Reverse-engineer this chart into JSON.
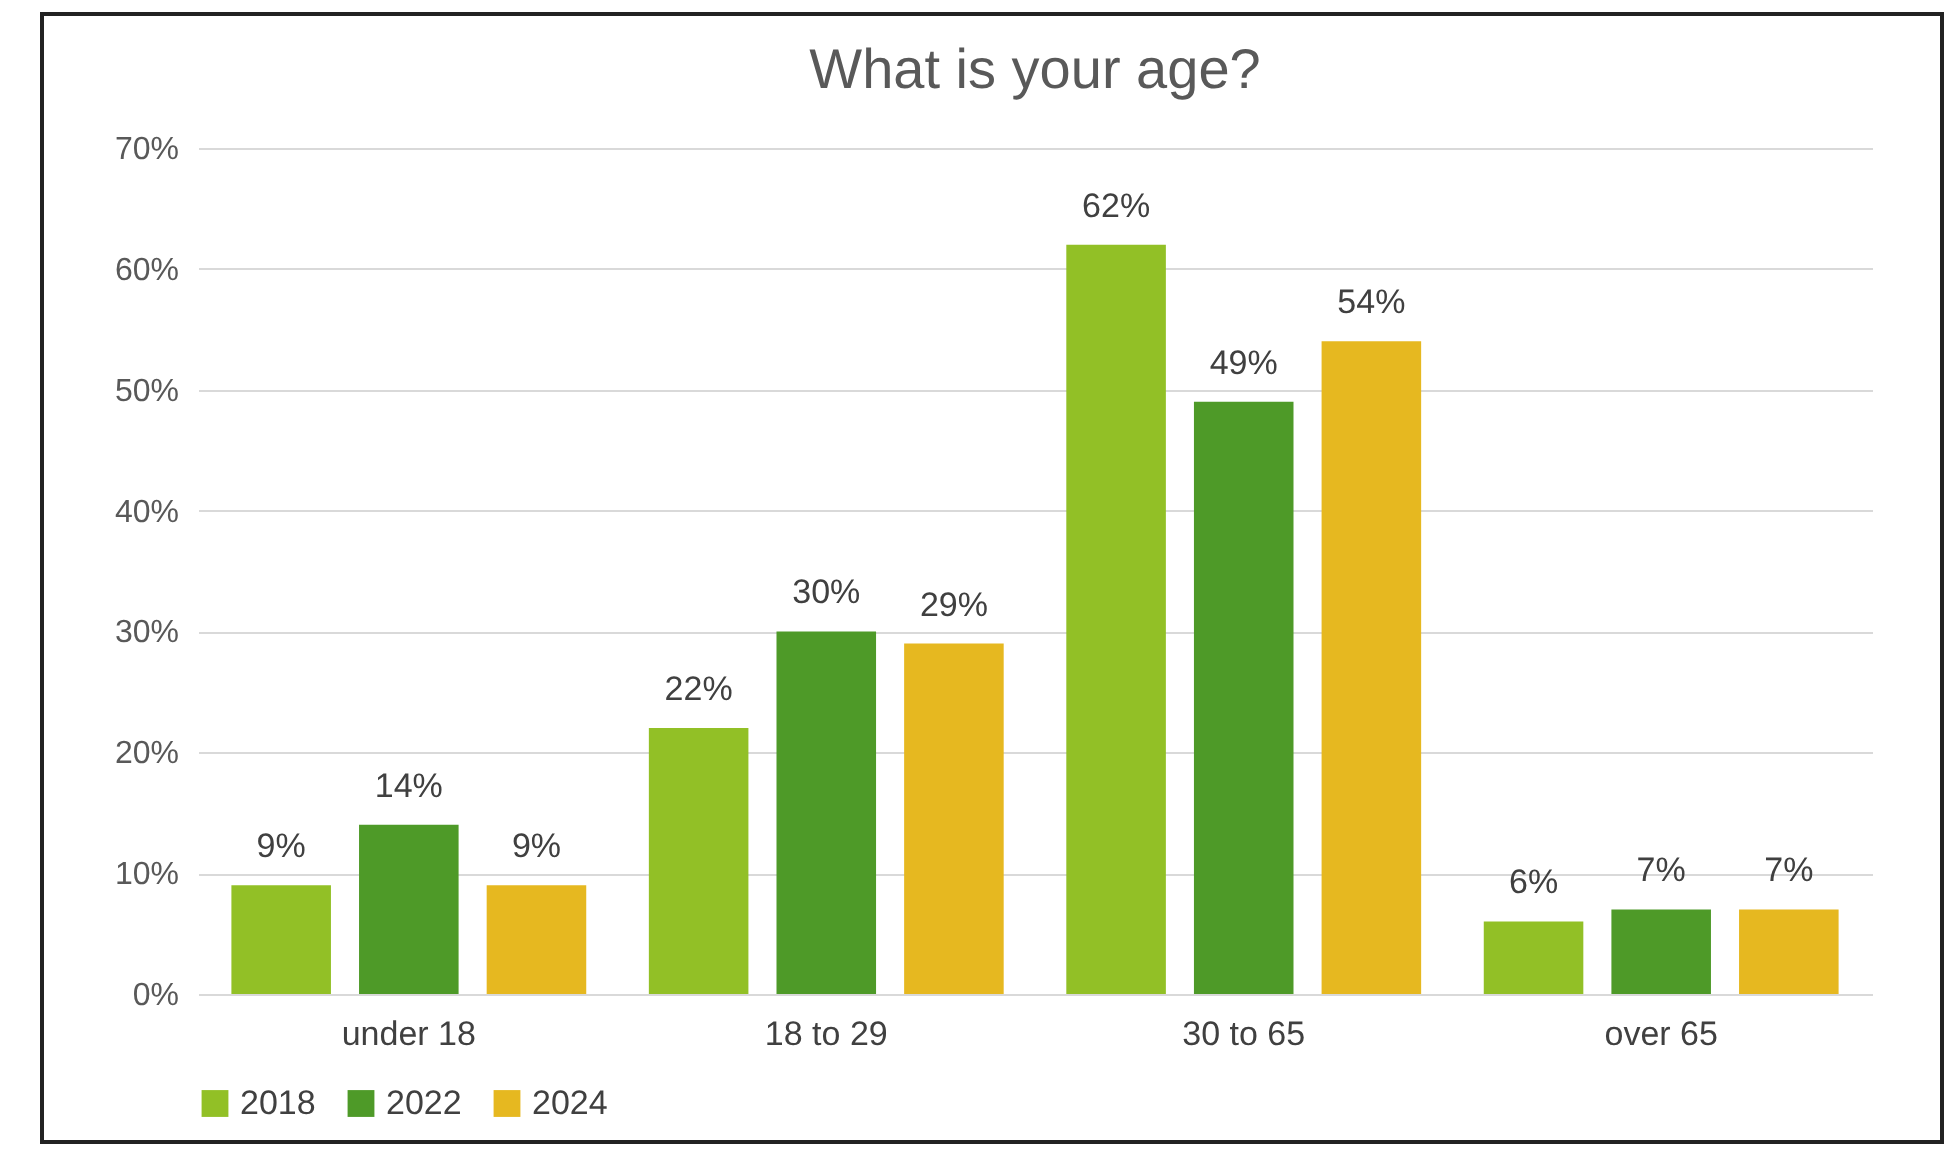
{
  "chart_data": {
    "type": "bar",
    "title": "What is your age?",
    "categories": [
      "under 18",
      "18 to 29",
      "30 to 65",
      "over 65"
    ],
    "series": [
      {
        "name": "2018",
        "color": "#92c026",
        "values": [
          9,
          22,
          62,
          6
        ],
        "value_labels": [
          "9%",
          "22%",
          "62%",
          "6%"
        ]
      },
      {
        "name": "2022",
        "color": "#4e9a28",
        "values": [
          14,
          30,
          49,
          7
        ],
        "value_labels": [
          "14%",
          "30%",
          "49%",
          "7%"
        ]
      },
      {
        "name": "2024",
        "color": "#e6b820",
        "values": [
          9,
          29,
          54,
          7
        ],
        "value_labels": [
          "9%",
          "29%",
          "54%",
          "7%"
        ]
      }
    ],
    "ylim": [
      0,
      70
    ],
    "yticks": [
      {
        "value": 0,
        "label": "0%"
      },
      {
        "value": 10,
        "label": "10%"
      },
      {
        "value": 20,
        "label": "20%"
      },
      {
        "value": 30,
        "label": "30%"
      },
      {
        "value": 40,
        "label": "40%"
      },
      {
        "value": 50,
        "label": "50%"
      },
      {
        "value": 60,
        "label": "60%"
      },
      {
        "value": 70,
        "label": "70%"
      }
    ],
    "grid": "y",
    "legend": "bottom"
  }
}
